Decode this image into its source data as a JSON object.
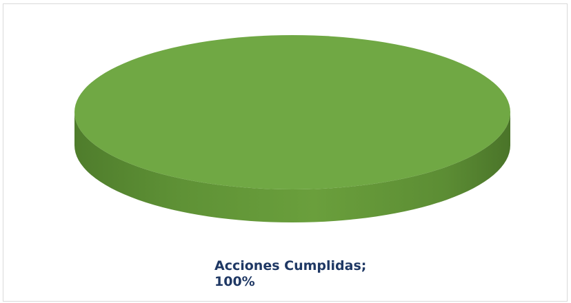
{
  "chart_data": {
    "type": "pie",
    "style": "3d",
    "categories": [
      "Acciones Cumplidas"
    ],
    "values": [
      100
    ],
    "unit": "%",
    "colors": [
      "#70a844"
    ],
    "title": "",
    "legend": "none",
    "data_labels": [
      {
        "category": "Acciones Cumplidas;",
        "value": "100%"
      }
    ]
  }
}
